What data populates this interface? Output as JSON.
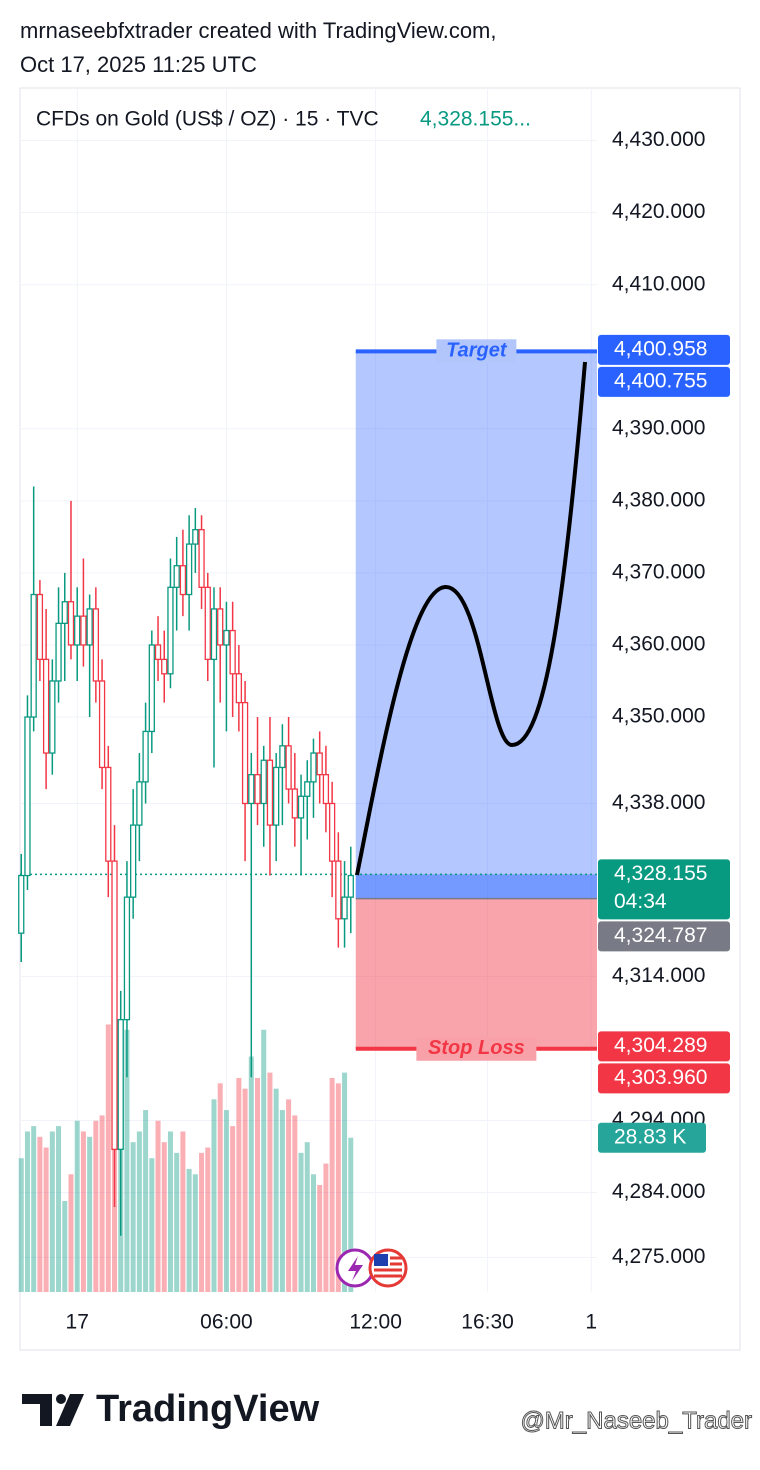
{
  "header": {
    "line1": "mrnaseebfxtrader created with TradingView.com,",
    "line2": "Oct 17, 2025 11:25 UTC"
  },
  "chart_data": {
    "type": "candlestick",
    "title": "CFDs on Gold (US$ / OZ) · 15 · TVC",
    "last_price_label": "4,328.155...",
    "up_color": "#089981",
    "down_color": "#f23645",
    "x": [
      -2.25,
      -2,
      -1.75,
      -1.5,
      -1.25,
      -1,
      -0.75,
      -0.5,
      -0.25,
      0,
      0.25,
      0.5,
      0.75,
      1,
      1.25,
      1.5,
      1.75,
      2,
      2.25,
      2.5,
      2.75,
      3,
      3.25,
      3.5,
      3.75,
      4,
      4.25,
      4.5,
      4.75,
      5,
      5.25,
      5.5,
      5.75,
      6,
      6.25,
      6.5,
      6.75,
      7,
      7.25,
      7.5,
      7.75,
      8,
      8.25,
      8.5,
      8.75,
      9,
      9.25,
      9.5,
      9.75,
      10,
      10.25,
      10.5,
      10.75,
      11
    ],
    "open": [
      4320,
      4328,
      4350,
      4367,
      4358,
      4345,
      4355,
      4363,
      4366,
      4360,
      4364,
      4360,
      4365,
      4355,
      4343,
      4330,
      4290,
      4308,
      4325,
      4335,
      4341,
      4348,
      4360,
      4358,
      4356,
      4368,
      4371,
      4367,
      4374,
      4376,
      4368,
      4358,
      4365,
      4360,
      4362,
      4356,
      4352,
      4338,
      4342,
      4338,
      4344,
      4335,
      4343,
      4346,
      4340,
      4336,
      4339,
      4341,
      4345,
      4342,
      4338,
      4330,
      4322,
      4325
    ],
    "high": [
      4331,
      4353,
      4382,
      4369,
      4365,
      4358,
      4368,
      4370,
      4380,
      4368,
      4372,
      4367,
      4368,
      4358,
      4346,
      4335,
      4312,
      4330,
      4340,
      4345,
      4352,
      4362,
      4364,
      4362,
      4372,
      4375,
      4376,
      4378,
      4379,
      4378,
      4370,
      4368,
      4368,
      4366,
      4366,
      4360,
      4355,
      4345,
      4350,
      4346,
      4350,
      4345,
      4349,
      4350,
      4345,
      4342,
      4344,
      4347,
      4348,
      4346,
      4341,
      4334,
      4330,
      4332
    ],
    "low": [
      4316,
      4326,
      4348,
      4355,
      4340,
      4342,
      4352,
      4355,
      4358,
      4355,
      4357,
      4350,
      4352,
      4340,
      4325,
      4282,
      4278,
      4300,
      4322,
      4330,
      4338,
      4345,
      4355,
      4352,
      4354,
      4362,
      4364,
      4362,
      4370,
      4365,
      4355,
      4343,
      4352,
      4348,
      4350,
      4348,
      4330,
      4300,
      4335,
      4332,
      4328,
      4330,
      4335,
      4338,
      4332,
      4328,
      4333,
      4336,
      4338,
      4334,
      4325,
      4318,
      4318,
      4320
    ],
    "close": [
      4328,
      4350,
      4367,
      4358,
      4345,
      4355,
      4363,
      4366,
      4360,
      4364,
      4360,
      4365,
      4355,
      4343,
      4330,
      4290,
      4308,
      4325,
      4335,
      4341,
      4348,
      4360,
      4358,
      4356,
      4368,
      4371,
      4367,
      4374,
      4376,
      4368,
      4358,
      4365,
      4360,
      4362,
      4356,
      4352,
      4338,
      4342,
      4338,
      4344,
      4335,
      4343,
      4346,
      4340,
      4336,
      4339,
      4341,
      4345,
      4342,
      4338,
      4330,
      4322,
      4325,
      4328
    ],
    "volume": {
      "axis": "y2",
      "values": [
        25,
        30,
        31,
        29,
        27,
        30,
        31,
        17,
        22,
        32,
        30,
        29,
        32,
        33,
        50,
        52,
        47,
        49,
        28,
        30,
        34,
        25,
        32,
        28,
        30,
        26,
        30,
        23,
        22,
        26,
        27,
        36,
        39,
        34,
        31,
        40,
        38,
        44,
        40,
        49,
        41,
        38,
        34,
        36,
        33,
        26,
        28,
        22,
        20,
        24,
        40,
        39,
        41,
        28.83
      ]
    },
    "volume_tag": {
      "value": 28.83,
      "label": "28.83 K"
    },
    "xlim": [
      -2.3,
      20.9
    ],
    "xticks": [
      {
        "value": 0,
        "label": "17"
      },
      {
        "value": 6,
        "label": "06:00"
      },
      {
        "value": 12,
        "label": "12:00"
      },
      {
        "value": 16.5,
        "label": "16:30"
      },
      {
        "value": 20.67,
        "label": "1"
      }
    ],
    "ylim": [
      4270.2,
      4437.3
    ],
    "yticks": [
      {
        "value": 4430,
        "label": "4,430.000"
      },
      {
        "value": 4420,
        "label": "4,420.000"
      },
      {
        "value": 4410,
        "label": "4,410.000"
      },
      {
        "value": 4390,
        "label": "4,390.000"
      },
      {
        "value": 4380,
        "label": "4,380.000"
      },
      {
        "value": 4370,
        "label": "4,370.000"
      },
      {
        "value": 4360,
        "label": "4,360.000"
      },
      {
        "value": 4350,
        "label": "4,350.000"
      },
      {
        "value": 4338,
        "label": "4,338.000"
      },
      {
        "value": 4314,
        "label": "4,314.000"
      },
      {
        "value": 4294,
        "label": "4,294.000"
      },
      {
        "value": 4284,
        "label": "4,284.000"
      },
      {
        "value": 4275,
        "label": "4,275.000"
      }
    ],
    "y2lim": [
      0,
      225
    ],
    "grid": true,
    "price_tags": [
      {
        "value": 4400.958,
        "label": "4,400.958",
        "color": "#2962ff"
      },
      {
        "value": 4400.755,
        "label": "4,400.755",
        "color": "#2962ff"
      },
      {
        "value": 4328.155,
        "label": "4,328.155",
        "color": "#089981"
      },
      {
        "value": 4324.787,
        "label": "4,324.787",
        "color": "#787b86"
      },
      {
        "value": 4304.289,
        "label": "4,304.289",
        "color": "#f23645"
      },
      {
        "value": 4303.96,
        "label": "4,303.960",
        "color": "#f23645"
      }
    ],
    "countdown": "04:34",
    "position": {
      "start": 11.2,
      "end": 20.9,
      "entry": 4324.787,
      "target": 4400.755,
      "stop": 4303.96,
      "current": 4328.155,
      "target_label": "Target",
      "stop_label": "Stop Loss"
    }
  },
  "footer": {
    "brand": "TradingView",
    "watermark": "@Mr_Naseeb_Trader"
  }
}
